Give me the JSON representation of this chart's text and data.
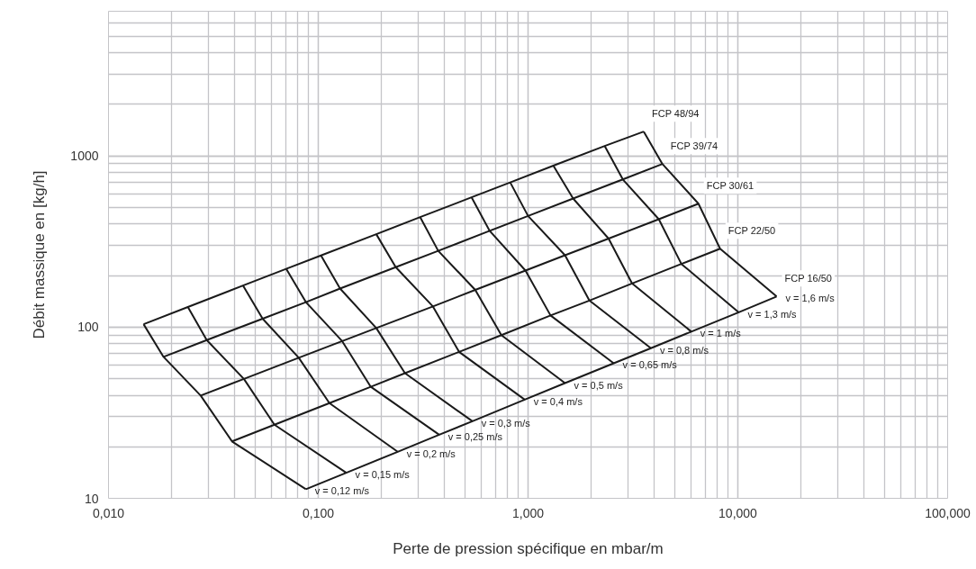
{
  "chart_data": {
    "type": "line",
    "xlabel": "Perte de pression spécifique en mbar/m",
    "ylabel": "Débit massique en [kg/h]",
    "log": "xy",
    "grid": true,
    "xlim": [
      0.01,
      100
    ],
    "ylim": [
      10,
      7000
    ],
    "xticks": [
      {
        "value": 0.01,
        "label": "0,010"
      },
      {
        "value": 0.1,
        "label": "0,100"
      },
      {
        "value": 1,
        "label": "1,000"
      },
      {
        "value": 10,
        "label": "10,000"
      },
      {
        "value": 100,
        "label": "100,000"
      }
    ],
    "yticks": [
      10,
      100,
      1000
    ],
    "series": [
      {
        "name": "FCP 48/94",
        "color": "#1a1a1a",
        "x": [
          0.0147,
          0.0239,
          0.0438,
          0.0703,
          0.103,
          0.189,
          0.306,
          0.538,
          0.822,
          1.32,
          2.32,
          3.56
        ],
        "values": [
          104,
          131,
          175,
          219,
          262,
          349,
          439,
          573,
          700,
          877,
          1143,
          1387
        ]
      },
      {
        "name": "FCP 39/74",
        "color": "#1a1a1a",
        "x": [
          0.0183,
          0.0294,
          0.0543,
          0.0873,
          0.127,
          0.234,
          0.373,
          0.656,
          1.0,
          1.64,
          2.83,
          4.37
        ],
        "values": [
          67,
          84,
          112,
          140,
          168,
          224,
          279,
          365,
          446,
          564,
          729,
          897
        ]
      },
      {
        "name": "FCP 30/61",
        "color": "#1a1a1a",
        "x": [
          0.0275,
          0.0442,
          0.0807,
          0.13,
          0.189,
          0.352,
          0.56,
          0.972,
          1.5,
          2.42,
          4.2,
          6.49
        ],
        "values": [
          39.8,
          49.8,
          66.2,
          82.8,
          98.8,
          132,
          165,
          214,
          263,
          329,
          427,
          526
        ]
      },
      {
        "name": "FCP 22/50",
        "color": "#1a1a1a",
        "x": [
          0.0388,
          0.0618,
          0.113,
          0.178,
          0.259,
          0.469,
          0.746,
          1.28,
          1.96,
          3.13,
          5.38,
          8.23
        ],
        "values": [
          21.5,
          26.9,
          36.0,
          44.8,
          53.8,
          71.7,
          89.8,
          117,
          143,
          180,
          234,
          287
        ]
      },
      {
        "name": "FCP 16/50",
        "color": "#1a1a1a",
        "x": [
          0.0873,
          0.136,
          0.239,
          0.377,
          0.543,
          0.964,
          1.5,
          2.56,
          3.85,
          6.0,
          10.1,
          15.3
        ],
        "values": [
          11.3,
          14.1,
          18.7,
          23.5,
          28.2,
          37.7,
          47.1,
          61.5,
          75.3,
          94.1,
          122,
          151
        ]
      },
      {
        "name": "v = 0,12 m/s",
        "color": "#1a1a1a",
        "x": [
          0.0147,
          0.0183,
          0.0275,
          0.0388,
          0.0873
        ],
        "values": [
          104,
          67,
          39.8,
          21.5,
          11.3
        ]
      },
      {
        "name": "v = 0,15 m/s",
        "color": "#1a1a1a",
        "x": [
          0.0239,
          0.0294,
          0.0442,
          0.0618,
          0.136
        ],
        "values": [
          131,
          84,
          49.8,
          26.9,
          14.1
        ]
      },
      {
        "name": "v = 0,2 m/s",
        "color": "#1a1a1a",
        "x": [
          0.0438,
          0.0543,
          0.0807,
          0.113,
          0.239
        ],
        "values": [
          175,
          112,
          66.2,
          36.0,
          18.7
        ]
      },
      {
        "name": "v = 0,25 m/s",
        "color": "#1a1a1a",
        "x": [
          0.0703,
          0.0873,
          0.13,
          0.178,
          0.377
        ],
        "values": [
          219,
          140,
          82.8,
          44.8,
          23.5
        ]
      },
      {
        "name": "v = 0,3 m/s",
        "color": "#1a1a1a",
        "x": [
          0.103,
          0.127,
          0.189,
          0.259,
          0.543
        ],
        "values": [
          262,
          168,
          98.8,
          53.8,
          28.2
        ]
      },
      {
        "name": "v = 0,4 m/s",
        "color": "#1a1a1a",
        "x": [
          0.189,
          0.234,
          0.352,
          0.469,
          0.964
        ],
        "values": [
          349,
          224,
          132,
          71.7,
          37.7
        ]
      },
      {
        "name": "v = 0,5 m/s",
        "color": "#1a1a1a",
        "x": [
          0.306,
          0.373,
          0.56,
          0.746,
          1.5
        ],
        "values": [
          439,
          279,
          165,
          89.8,
          47.1
        ]
      },
      {
        "name": "v = 0,65 m/s",
        "color": "#1a1a1a",
        "x": [
          0.538,
          0.656,
          0.972,
          1.28,
          2.56
        ],
        "values": [
          573,
          365,
          214,
          117,
          61.5
        ]
      },
      {
        "name": "v = 0,8 m/s",
        "color": "#1a1a1a",
        "x": [
          0.822,
          1.0,
          1.5,
          1.96,
          3.85
        ],
        "values": [
          700,
          446,
          263,
          143,
          75.3
        ]
      },
      {
        "name": "v = 1 m/s",
        "color": "#1a1a1a",
        "x": [
          1.32,
          1.64,
          2.42,
          3.13,
          6.0
        ],
        "values": [
          877,
          564,
          329,
          180,
          94.1
        ]
      },
      {
        "name": "v = 1,3 m/s",
        "color": "#1a1a1a",
        "x": [
          2.32,
          2.83,
          4.2,
          5.38,
          10.1
        ],
        "values": [
          1143,
          729,
          427,
          234,
          122
        ]
      },
      {
        "name": "v = 1,6 m/s",
        "color": "#1a1a1a",
        "x": [
          3.56,
          4.37,
          6.49,
          8.23,
          15.3
        ],
        "values": [
          1387,
          897,
          526,
          287,
          151
        ]
      }
    ]
  }
}
